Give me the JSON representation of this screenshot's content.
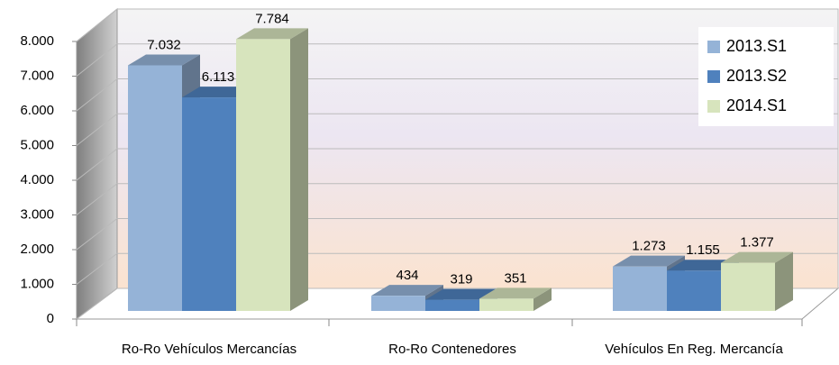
{
  "chart_data": {
    "type": "bar3d",
    "categories": [
      "Ro-Ro Vehículos Mercancías",
      "Ro-Ro Contenedores",
      "Vehículos En Reg. Mercancía"
    ],
    "series": [
      {
        "name": "2013.S1",
        "color": "#95b3d7",
        "values": [
          7032,
          434,
          1273
        ],
        "value_labels": [
          "7.032",
          "434",
          "1.273"
        ]
      },
      {
        "name": "2013.S2",
        "color": "#4f81bd",
        "values": [
          6113,
          319,
          1155
        ],
        "value_labels": [
          "6.113",
          "319",
          "1.155"
        ]
      },
      {
        "name": "2014.S1",
        "color": "#d7e4bd",
        "values": [
          7784,
          351,
          1377
        ],
        "value_labels": [
          "7.784",
          "351",
          "1.377"
        ]
      }
    ],
    "ylim": [
      0,
      8000
    ],
    "yticks": [
      {
        "value": 0,
        "label": "0"
      },
      {
        "value": 1000,
        "label": "1.000"
      },
      {
        "value": 2000,
        "label": "2.000"
      },
      {
        "value": 3000,
        "label": "3.000"
      },
      {
        "value": 4000,
        "label": "4.000"
      },
      {
        "value": 5000,
        "label": "5.000"
      },
      {
        "value": 6000,
        "label": "6.000"
      },
      {
        "value": 7000,
        "label": "7.000"
      },
      {
        "value": 8000,
        "label": "8.000"
      }
    ],
    "grid": true,
    "legend": "top-right"
  }
}
